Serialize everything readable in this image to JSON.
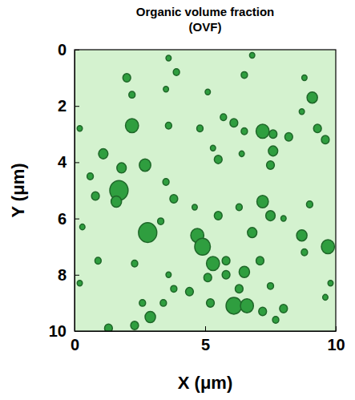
{
  "chart_data": {
    "type": "scatter",
    "title": "Organic volume fraction",
    "subtitle": "(OVF)",
    "x_label": "X (μm)",
    "y_label": "Y (μm)",
    "xlim": [
      0,
      10
    ],
    "ylim": [
      10,
      0
    ],
    "xticks": [
      0,
      5,
      10
    ],
    "yticks": [
      0,
      2,
      4,
      6,
      8,
      10
    ],
    "grid": false,
    "series": [
      {
        "color": "#2f9e3f",
        "marker": "blob",
        "x": [
          3.6,
          3.9,
          3.5,
          2.0,
          2.2,
          6.8,
          6.5,
          5.1,
          9.1,
          8.8,
          8.7,
          0.2,
          2.2,
          3.6,
          4.8,
          5.7,
          6.1,
          6.5,
          7.2,
          7.6,
          8.2,
          9.3,
          9.6,
          7.6,
          5.3,
          1.1,
          1.8,
          2.7,
          5.5,
          6.4,
          7.5,
          0.6,
          0.8,
          1.7,
          1.6,
          3.5,
          3.8,
          4.6,
          5.5,
          6.3,
          7.2,
          7.5,
          9.0,
          8.0,
          0.3,
          3.3,
          2.8,
          4.7,
          6.8,
          8.7,
          8.8,
          9.7,
          0.9,
          2.3,
          4.9,
          5.3,
          5.8,
          6.5,
          5.1,
          5.8,
          7.1,
          3.6,
          0.2,
          3.8,
          4.4,
          6.3,
          7.5,
          2.6,
          2.9,
          2.3,
          3.4,
          5.2,
          6.1,
          6.6,
          7.2,
          8.0,
          7.7,
          9.6,
          9.8,
          1.3
        ],
        "values": [
          0.3,
          0.8,
          1.4,
          1.0,
          1.6,
          0.2,
          0.9,
          1.5,
          1.7,
          1.0,
          2.2,
          2.8,
          2.7,
          2.7,
          2.8,
          2.4,
          2.6,
          2.9,
          2.9,
          3.0,
          3.1,
          2.8,
          3.2,
          3.6,
          3.5,
          3.7,
          4.2,
          4.1,
          3.9,
          3.7,
          4.1,
          4.5,
          5.2,
          5.0,
          5.4,
          4.7,
          5.3,
          5.6,
          5.9,
          5.6,
          5.4,
          5.9,
          5.5,
          6.0,
          6.3,
          6.1,
          6.5,
          6.6,
          6.5,
          6.6,
          7.2,
          7.0,
          7.5,
          7.6,
          7.0,
          7.6,
          7.5,
          7.9,
          8.1,
          8.0,
          7.5,
          8.0,
          8.3,
          8.5,
          8.6,
          8.5,
          8.4,
          9.0,
          9.5,
          9.8,
          9.0,
          9.0,
          9.1,
          9.1,
          9.3,
          9.2,
          9.6,
          8.8,
          8.3,
          9.9
        ],
        "size": [
          0.1,
          0.12,
          0.1,
          0.15,
          0.12,
          0.1,
          0.12,
          0.1,
          0.2,
          0.1,
          0.1,
          0.1,
          0.25,
          0.12,
          0.12,
          0.12,
          0.15,
          0.12,
          0.25,
          0.15,
          0.15,
          0.15,
          0.15,
          0.18,
          0.1,
          0.18,
          0.18,
          0.22,
          0.15,
          0.1,
          0.15,
          0.12,
          0.15,
          0.35,
          0.2,
          0.12,
          0.15,
          0.1,
          0.15,
          0.12,
          0.22,
          0.18,
          0.12,
          0.1,
          0.1,
          0.12,
          0.35,
          0.25,
          0.18,
          0.2,
          0.12,
          0.25,
          0.12,
          0.12,
          0.3,
          0.25,
          0.15,
          0.2,
          0.15,
          0.15,
          0.15,
          0.1,
          0.1,
          0.12,
          0.15,
          0.15,
          0.12,
          0.12,
          0.2,
          0.15,
          0.12,
          0.15,
          0.3,
          0.25,
          0.15,
          0.15,
          0.12,
          0.1,
          0.1,
          0.15
        ]
      }
    ]
  }
}
